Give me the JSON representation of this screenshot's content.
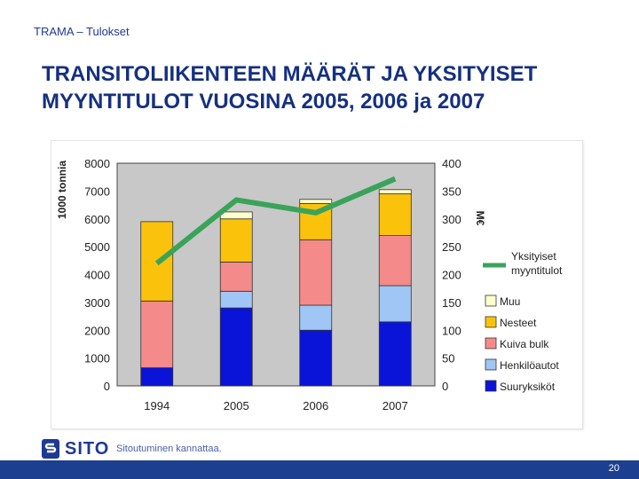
{
  "header": {
    "label": "TRAMA – Tulokset"
  },
  "slide": {
    "title": "TRANSITOLIIKENTEEN MÄÄRÄT JA YKSITYISET MYYNTITULOT VUOSINA 2005, 2006 ja 2007"
  },
  "chart_data": {
    "type": "bar",
    "stacked": true,
    "categories": [
      "1994",
      "2005",
      "2006",
      "2007"
    ],
    "ylabel": "1000 tonnia",
    "ylim": [
      0,
      8000
    ],
    "y_ticks": [
      "8000",
      "7000",
      "6000",
      "5000",
      "4000",
      "3000",
      "2000",
      "1000",
      "0"
    ],
    "y2label": "M€",
    "y2lim": [
      0,
      400
    ],
    "y2_ticks": [
      "400",
      "350",
      "300",
      "250",
      "200",
      "150",
      "100",
      "50",
      "0"
    ],
    "grid": false,
    "legend_position": "right",
    "series": [
      {
        "name": "Suuryksiköt",
        "color": "#0a14d8",
        "values": [
          650,
          2800,
          2000,
          2300
        ]
      },
      {
        "name": "Henkilöautot",
        "color": "#9fc6f4",
        "values": [
          0,
          600,
          900,
          1300
        ]
      },
      {
        "name": "Kuiva bulk",
        "color": "#f58a8a",
        "values": [
          2400,
          1050,
          2350,
          1800
        ]
      },
      {
        "name": "Nesteet",
        "color": "#fbc20b",
        "values": [
          2850,
          1550,
          1300,
          1500
        ]
      },
      {
        "name": "Muu",
        "color": "#ffffcc",
        "values": [
          0,
          250,
          150,
          150
        ]
      }
    ],
    "line_series": {
      "name": "Yksityiset myyntitulot",
      "axis": "right",
      "color": "#3aa35a",
      "values": [
        220,
        334,
        311,
        372
      ]
    }
  },
  "logo": {
    "name": "SITO",
    "slogan": "Sitoutuminen kannattaa."
  },
  "footer": {
    "page_number": "20"
  }
}
